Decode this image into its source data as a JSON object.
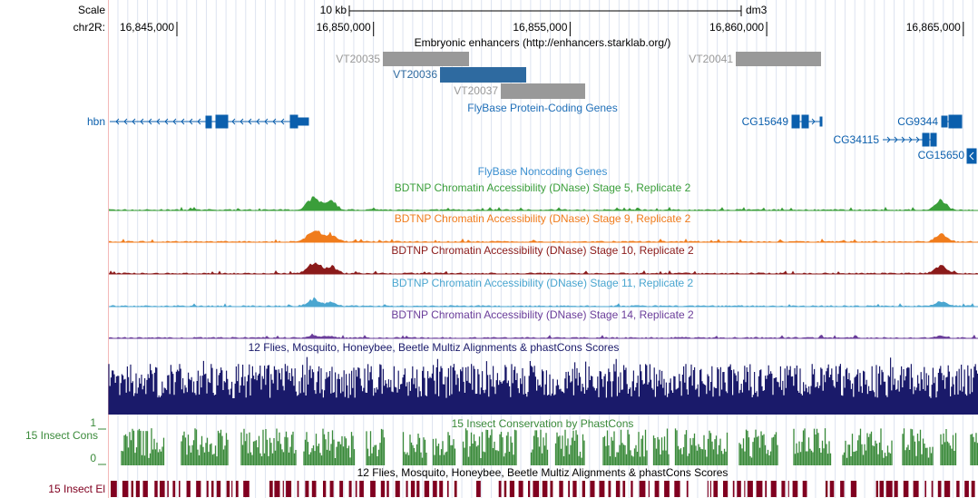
{
  "ruler": {
    "scale_label": "Scale",
    "chrom_label": "chr2R:",
    "scale_bar": "10 kb",
    "assembly": "dm3",
    "positions": [
      "16,845,000",
      "16,850,000",
      "16,855,000",
      "16,860,000",
      "16,865,000"
    ]
  },
  "enhancers": {
    "title": "Embryonic enhancers (http://enhancers.starklab.org/)",
    "items": [
      "VT20035",
      "VT20036",
      "VT20037",
      "VT20041"
    ]
  },
  "protein_coding": {
    "title": "FlyBase Protein-Coding Genes",
    "genes": [
      "hbn",
      "CG15649",
      "CG9344",
      "CG34115",
      "CG15650"
    ]
  },
  "noncoding": {
    "title": "FlyBase Noncoding Genes"
  },
  "dnase": [
    "BDTNP Chromatin Accessibility (DNase) Stage 5, Replicate 2",
    "BDTNP Chromatin Accessibility (DNase) Stage 9, Replicate 2",
    "BDTNP Chromatin Accessibility (DNase) Stage 10, Replicate 2",
    "BDTNP Chromatin Accessibility (DNase) Stage 11, Replicate 2",
    "BDTNP Chromatin Accessibility (DNase) Stage 14, Replicate 2"
  ],
  "multiz": {
    "title": "12 Flies, Mosquito, Honeybee, Beetle Multiz Alignments & phastCons Scores"
  },
  "phastcons": {
    "title": "15 Insect Conservation by PhastCons",
    "side_label": "15 Insect Cons",
    "axis_top": "1",
    "axis_bottom": "0"
  },
  "elements": {
    "title": "12 Flies, Mosquito, Honeybee, Beetle Multiz Alignments & phastCons Scores",
    "side_label": "15 Insect El"
  }
}
